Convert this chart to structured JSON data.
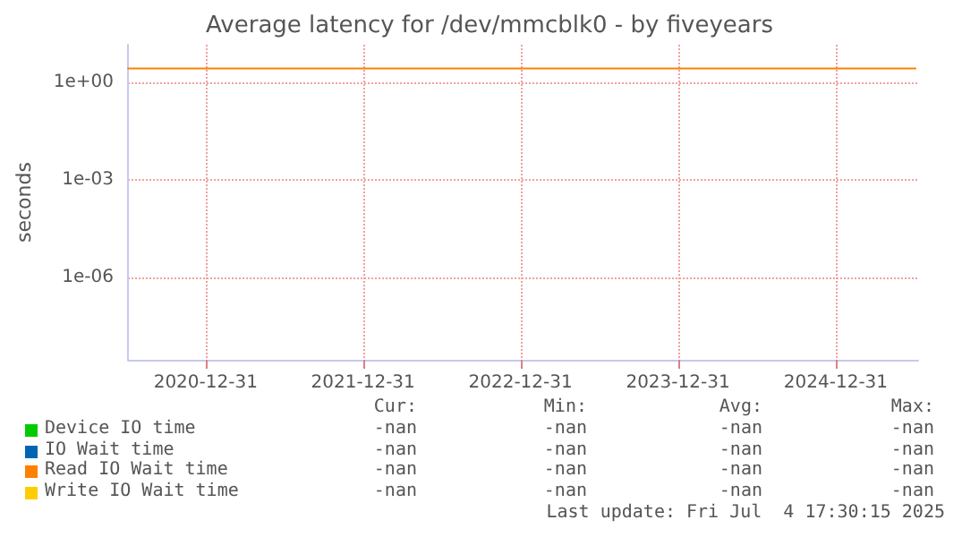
{
  "chart_data": {
    "type": "line",
    "title": "Average latency for /dev/mmcblk0 - by fiveyears",
    "ylabel": "seconds",
    "x": [
      "2020-07-04",
      "2025-07-04"
    ],
    "series": [
      {
        "name": "Device IO time",
        "color": "#00cc00",
        "values": [
          null,
          null
        ]
      },
      {
        "name": "IO Wait time",
        "color": "#0066b3",
        "values": [
          null,
          null
        ]
      },
      {
        "name": "Read IO Wait time",
        "color": "#ff8000",
        "values": [
          2.6,
          2.6
        ]
      },
      {
        "name": "Write IO Wait time",
        "color": "#ffcc00",
        "values": [
          null,
          null
        ]
      }
    ],
    "xlim": [
      "2020-07-04",
      "2025-07-10"
    ],
    "xticks": [
      "2020-12-31",
      "2021-12-31",
      "2022-12-31",
      "2023-12-31",
      "2024-12-31"
    ],
    "ylim": [
      3e-09,
      14
    ],
    "yticks": [
      {
        "value": 1e-06,
        "label": "1e-06"
      },
      {
        "value": 0.001,
        "label": "1e-03"
      },
      {
        "value": 1,
        "label": "1e+00"
      }
    ],
    "log": "y",
    "grid": true,
    "legend": "bottom",
    "marker": "none",
    "line_style": "solid",
    "annotations": [
      "Cur:",
      "Min:",
      "Avg:",
      "Max:",
      "-nan",
      "-nan",
      "-nan",
      "-nan",
      "-nan",
      "-nan",
      "-nan",
      "-nan",
      "-nan",
      "-nan",
      "-nan",
      "-nan",
      "-nan",
      "-nan",
      "-nan",
      "-nan",
      "Last update: Fri Jul  4 17:30:15 2025"
    ]
  }
}
